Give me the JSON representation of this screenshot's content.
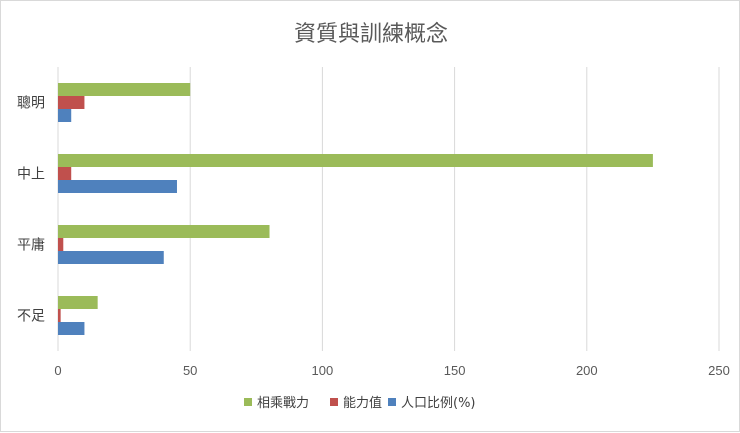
{
  "chart_data": {
    "type": "bar",
    "orientation": "horizontal",
    "title": "資質與訓練概念",
    "categories": [
      "聰明",
      "中上",
      "平庸",
      "不足"
    ],
    "series": [
      {
        "name": "相乘戰力",
        "values": [
          50,
          225,
          80,
          15
        ],
        "color": "#9bbb59"
      },
      {
        "name": "能力值",
        "values": [
          10,
          5,
          2,
          1
        ],
        "color": "#c0504d"
      },
      {
        "name": "人口比例(%)",
        "values": [
          5,
          45,
          40,
          10
        ],
        "color": "#4f81bd"
      }
    ],
    "xlim": [
      0,
      250
    ],
    "xticks": [
      0,
      50,
      100,
      150,
      200,
      250
    ],
    "grid": "vertical",
    "legend_position": "bottom"
  }
}
